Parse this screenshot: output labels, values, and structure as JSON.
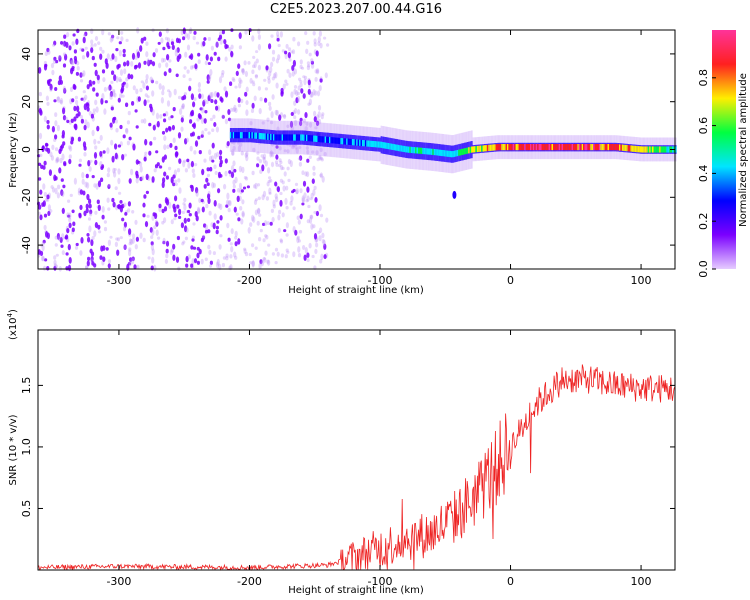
{
  "title": "C2E5.2023.207.00.44.G16",
  "chart_data": [
    {
      "type": "heatmap",
      "xlabel": "Height of straight line (km)",
      "ylabel": "Frequency (Hz)",
      "xlim": [
        -362,
        126
      ],
      "ylim": [
        -50,
        50
      ],
      "x_ticks": [
        -300,
        -200,
        -100,
        0,
        100
      ],
      "y_ticks": [
        -40,
        -20,
        0,
        20,
        40
      ],
      "colorbar": {
        "label": "Normalized spectral amplitude",
        "range": [
          0,
          1
        ],
        "ticks": [
          "0.0",
          "0.2",
          "0.4",
          "0.6",
          "0.8"
        ],
        "colors": [
          "#e6ccff",
          "#7b00ff",
          "#0000ff",
          "#00e5ff",
          "#00ff40",
          "#ffee00",
          "#ff2020",
          "#ff3399"
        ]
      },
      "ridge": {
        "x": [
          -215,
          -200,
          -180,
          -160,
          -140,
          -120,
          -100,
          -80,
          -60,
          -45,
          -30,
          -10,
          10,
          40,
          80,
          100,
          126
        ],
        "freq": [
          6,
          6,
          5,
          5,
          4,
          3,
          2,
          0,
          -1,
          -2,
          0,
          1,
          1,
          1,
          1,
          0,
          0
        ],
        "amplitude": [
          0.35,
          0.4,
          0.35,
          0.4,
          0.35,
          0.4,
          0.45,
          0.5,
          0.5,
          0.45,
          0.7,
          0.85,
          0.95,
          0.95,
          0.9,
          0.8,
          0.5
        ]
      },
      "noise_region_x": [
        -362,
        -140
      ]
    },
    {
      "type": "line",
      "xlabel": "Height of straight line (km)",
      "ylabel": "SNR (10 * v/v)",
      "y_scale_label": "(x10",
      "y_scale_exponent": "4",
      "y_scale_suffix": ")",
      "xlim": [
        -362,
        126
      ],
      "ylim": [
        0,
        1.95
      ],
      "x_ticks": [
        -300,
        -200,
        -100,
        0,
        100
      ],
      "y_ticks": [
        "0.5",
        "1.0",
        "1.5"
      ],
      "series": [
        {
          "color": "#ee2222",
          "x": [
            -362,
            -300,
            -200,
            -140,
            -120,
            -100,
            -80,
            -60,
            -40,
            -20,
            0,
            20,
            40,
            60,
            80,
            100,
            126
          ],
          "y": [
            0.02,
            0.03,
            0.02,
            0.04,
            0.1,
            0.18,
            0.25,
            0.3,
            0.45,
            0.7,
            1.0,
            1.35,
            1.55,
            1.55,
            1.5,
            1.48,
            1.47
          ]
        }
      ]
    }
  ]
}
